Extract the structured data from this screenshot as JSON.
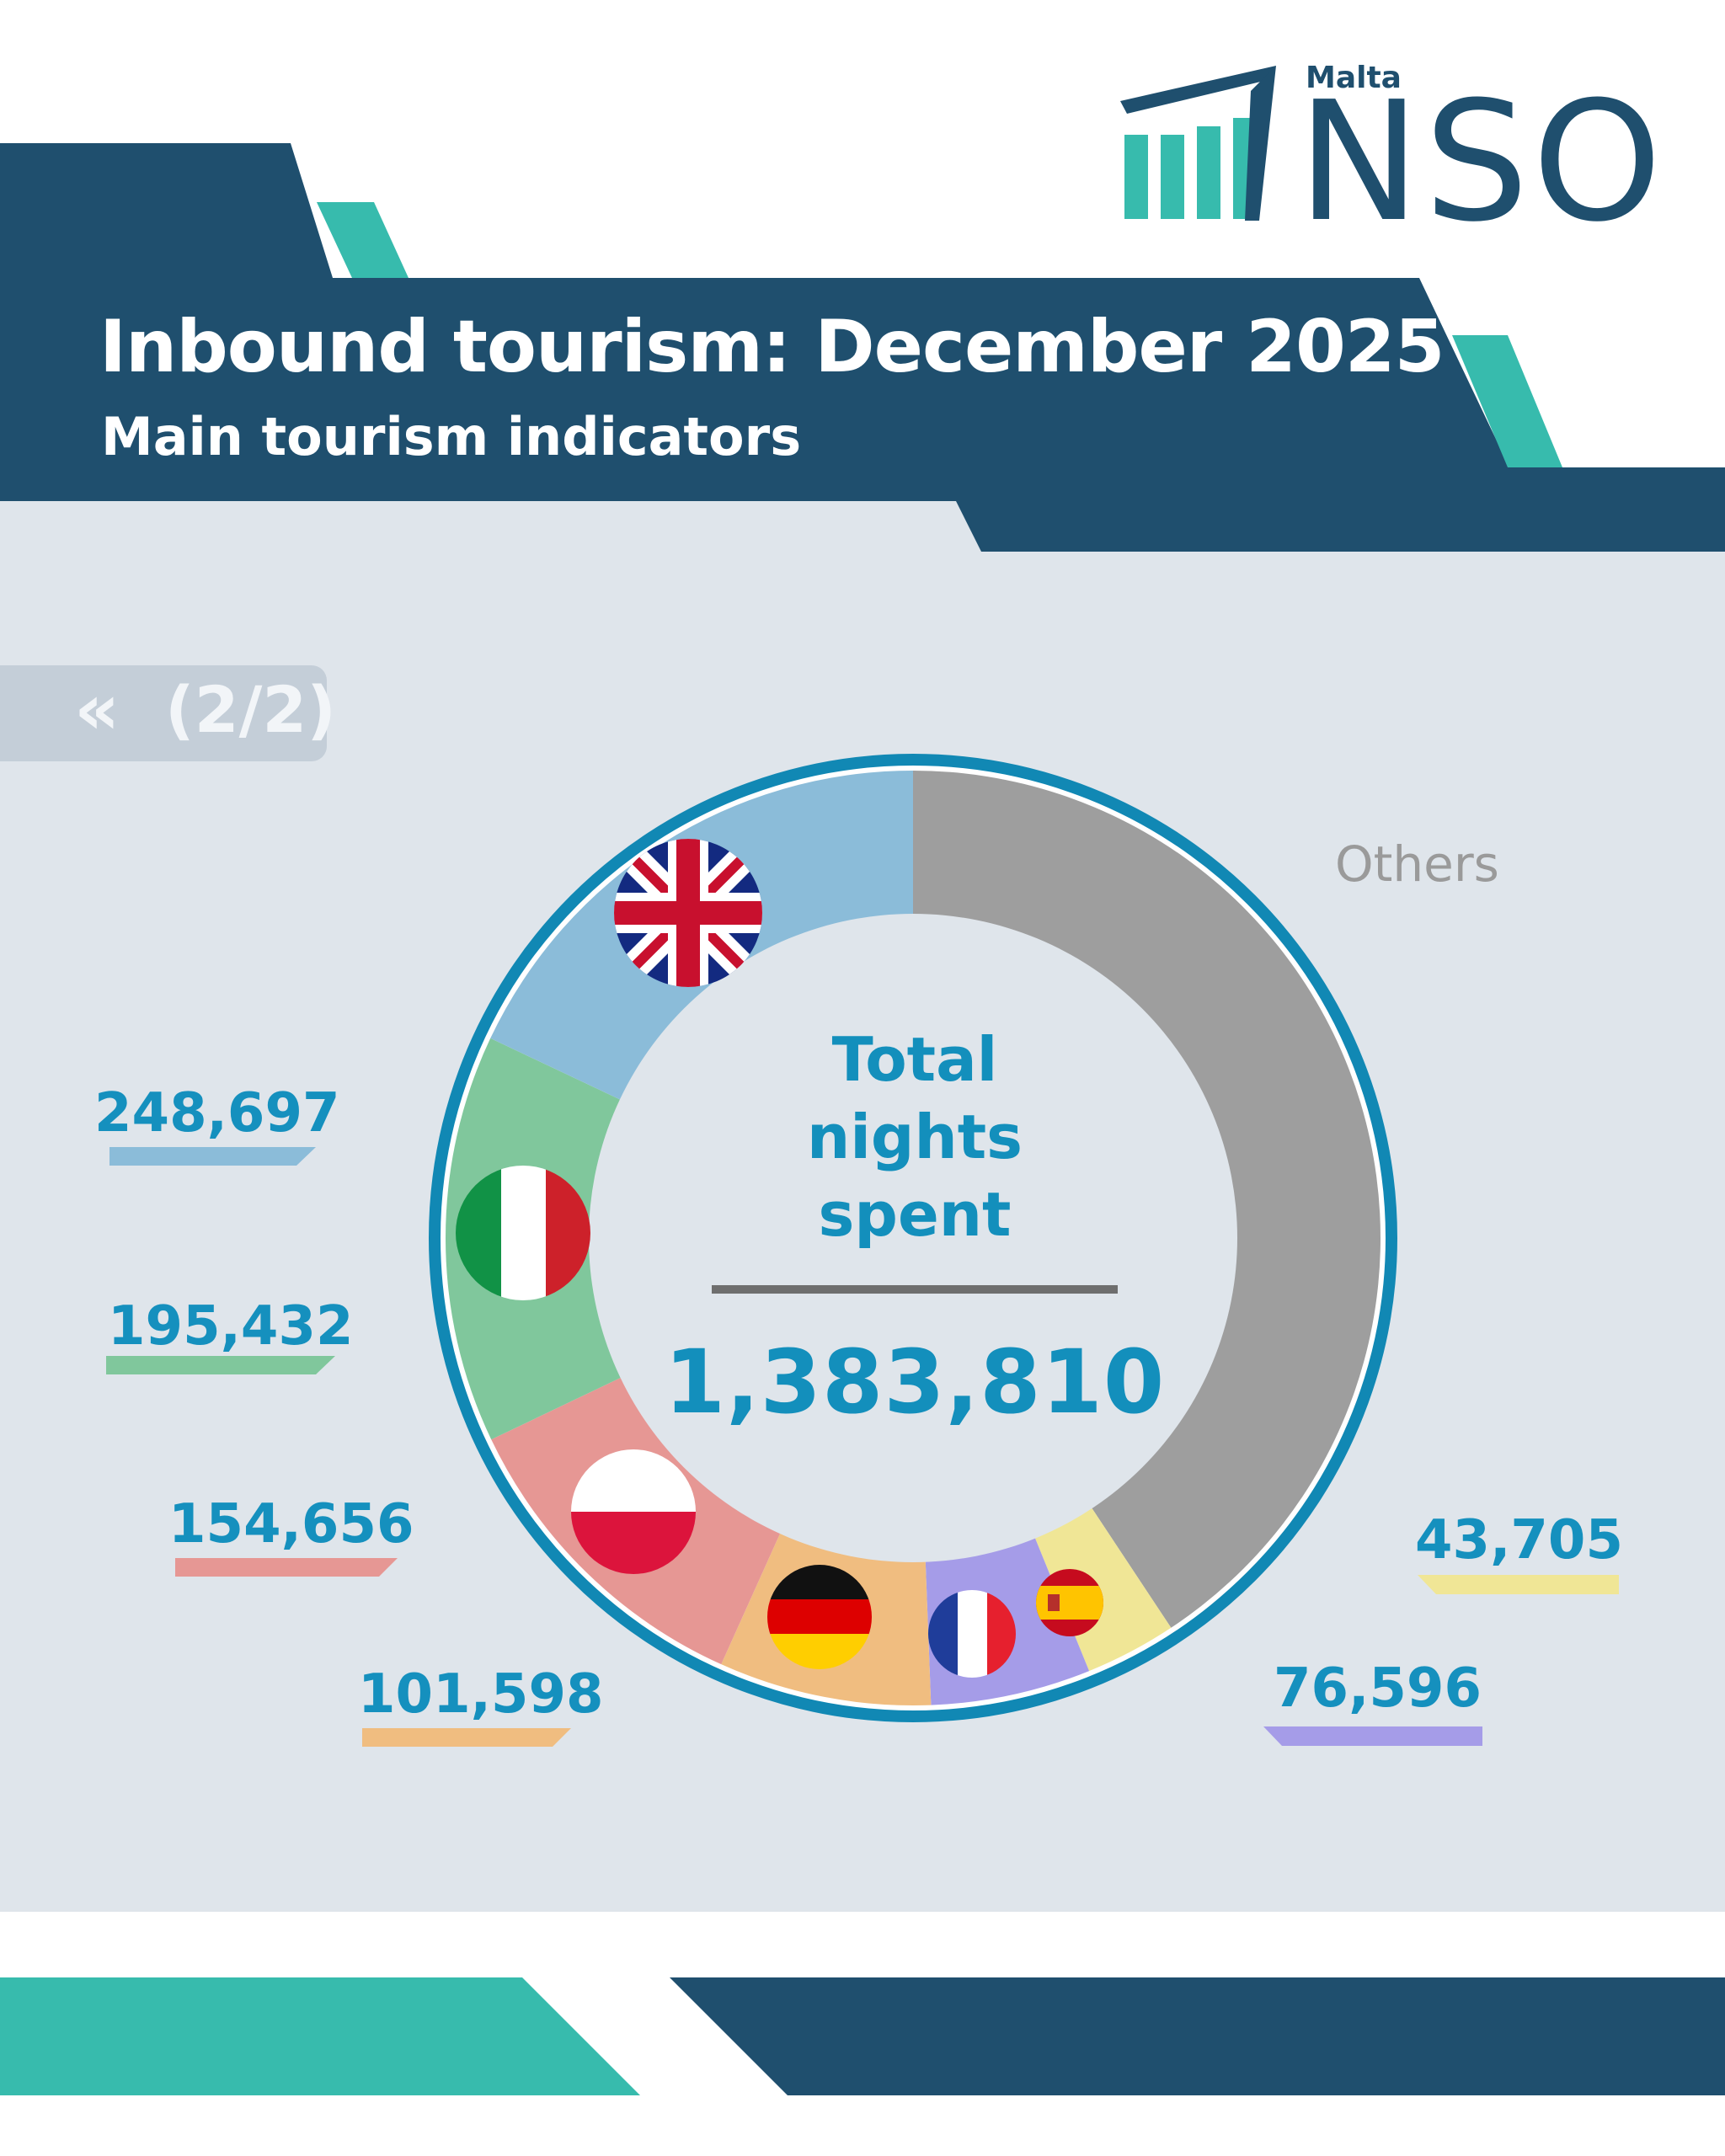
{
  "header": {
    "title": "Inbound tourism: December 2025",
    "subtitle": "Main tourism indicators"
  },
  "logo": {
    "country": "Malta",
    "name": "NSO"
  },
  "pagination": {
    "arrow": "«",
    "label": "(2/2)"
  },
  "center": {
    "label_line1": "Total",
    "label_line2": "nights",
    "label_line3": "spent",
    "total": "1,383,810"
  },
  "chart_data": {
    "type": "pie",
    "total": 1383810,
    "slices": [
      {
        "country": "United Kingdom",
        "flag_icon": "uk-flag-icon",
        "value": 248697,
        "label": "248,697",
        "color": "#8bbcd9"
      },
      {
        "country": "Italy",
        "flag_icon": "italy-flag-icon",
        "value": 195432,
        "label": "195,432",
        "color": "#80c79c"
      },
      {
        "country": "Poland",
        "flag_icon": "poland-flag-icon",
        "value": 154656,
        "label": "154,656",
        "color": "#e69794"
      },
      {
        "country": "Germany",
        "flag_icon": "germany-flag-icon",
        "value": 101598,
        "label": "101,598",
        "color": "#f0bd80"
      },
      {
        "country": "France",
        "flag_icon": "france-flag-icon",
        "value": 76596,
        "label": "76,596",
        "color": "#a59ce8"
      },
      {
        "country": "Spain",
        "flag_icon": "spain-flag-icon",
        "value": 43705,
        "label": "43,705",
        "color": "#f0e696"
      },
      {
        "country": "Others",
        "value": 563126,
        "label": "Others",
        "color": "#9e9e9e"
      }
    ],
    "ring_color": "#1188b4"
  }
}
